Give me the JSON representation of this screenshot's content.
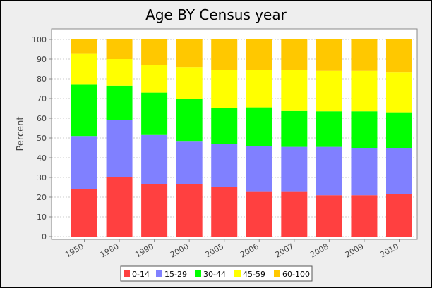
{
  "chart_data": {
    "type": "bar",
    "stacked": true,
    "title": "Age BY Census year",
    "xlabel": "",
    "ylabel": "Percent",
    "ylim": [
      0,
      100
    ],
    "yticks": [
      0,
      10,
      20,
      30,
      40,
      50,
      60,
      70,
      80,
      90,
      100
    ],
    "grid": true,
    "legend_position": "bottom",
    "categories": [
      "1950",
      "1980",
      "1990",
      "2000",
      "2005",
      "2006",
      "2007",
      "2008",
      "2009",
      "2010"
    ],
    "series": [
      {
        "name": "0-14",
        "color": "#ff4040",
        "values": [
          24.0,
          30.0,
          26.5,
          26.5,
          25.0,
          23.0,
          23.0,
          21.0,
          21.0,
          21.5
        ]
      },
      {
        "name": "15-29",
        "color": "#8080ff",
        "values": [
          27.0,
          29.0,
          25.0,
          22.0,
          22.0,
          23.0,
          22.5,
          24.5,
          24.0,
          23.5
        ]
      },
      {
        "name": "30-44",
        "color": "#00ff00",
        "values": [
          26.0,
          17.5,
          21.5,
          21.5,
          18.0,
          19.5,
          18.5,
          18.0,
          18.5,
          18.0
        ]
      },
      {
        "name": "45-59",
        "color": "#ffff00",
        "values": [
          16.0,
          13.5,
          14.0,
          16.0,
          19.5,
          19.0,
          20.5,
          20.5,
          20.5,
          20.5
        ]
      },
      {
        "name": "60-100",
        "color": "#ffc800",
        "values": [
          7.0,
          10.0,
          13.0,
          14.0,
          15.5,
          15.5,
          15.5,
          16.0,
          16.0,
          16.5
        ]
      }
    ]
  }
}
